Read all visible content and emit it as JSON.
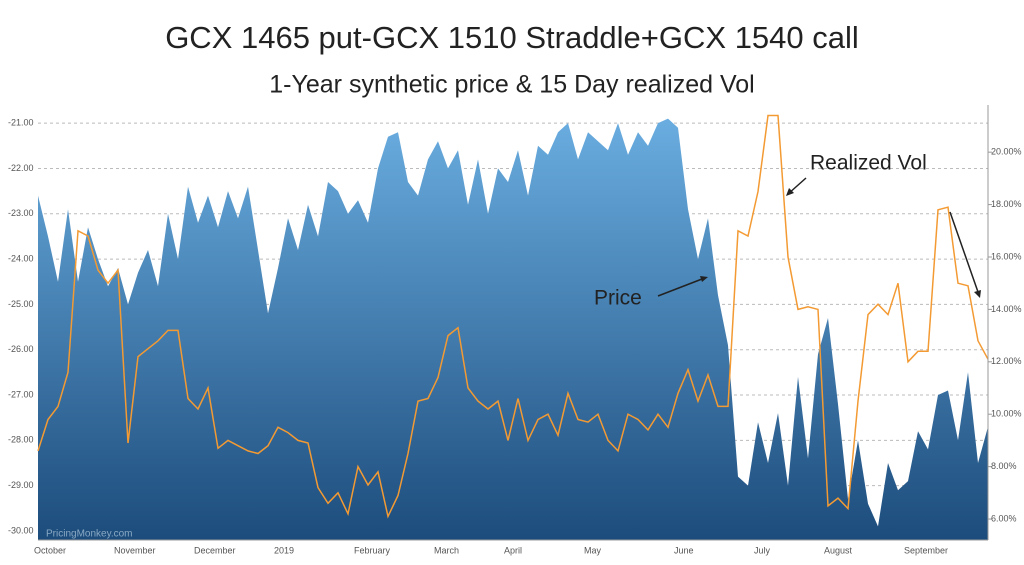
{
  "chart_data": {
    "type": "area-line",
    "title": "GCX 1465 put-GCX 1510 Straddle+GCX 1540 call",
    "subtitle": "1-Year synthetic price & 15 Day realized Vol",
    "watermark": "PricingMonkey.com",
    "categories": [
      null,
      "October",
      null,
      null,
      null,
      null,
      null,
      null,
      null,
      "November",
      null,
      null,
      null,
      null,
      null,
      null,
      null,
      "December",
      null,
      null,
      null,
      null,
      null,
      null,
      null,
      "2019",
      null,
      null,
      null,
      null,
      null,
      null,
      null,
      "February",
      null,
      null,
      null,
      null,
      null,
      null,
      null,
      "March",
      null,
      null,
      null,
      null,
      null,
      null,
      "April",
      null,
      null,
      null,
      null,
      null,
      null,
      null,
      "May",
      null,
      null,
      null,
      null,
      null,
      null,
      null,
      null,
      "June",
      null,
      null,
      null,
      null,
      null,
      null,
      null,
      "July",
      null,
      null,
      null,
      null,
      null,
      null,
      "August",
      null,
      null,
      null,
      null,
      null,
      null,
      null,
      "September",
      null,
      null,
      null,
      null,
      null,
      null,
      null
    ],
    "series": [
      {
        "name": "Price",
        "color": "#6aade0",
        "color2": "#1c4c7c",
        "values": [
          -22.6,
          -23.5,
          -24.5,
          -22.9,
          -24.5,
          -23.3,
          -24.0,
          -24.6,
          -24.2,
          -25.0,
          -24.3,
          -23.8,
          -24.6,
          -23.0,
          -24.0,
          -22.4,
          -23.2,
          -22.6,
          -23.3,
          -22.5,
          -23.1,
          -22.4,
          -23.8,
          -25.2,
          -24.2,
          -23.1,
          -23.8,
          -22.8,
          -23.5,
          -22.3,
          -22.5,
          -23.0,
          -22.7,
          -23.2,
          -22.0,
          -21.3,
          -21.2,
          -22.3,
          -22.6,
          -21.8,
          -21.4,
          -22.0,
          -21.6,
          -22.8,
          -21.8,
          -23.0,
          -22.0,
          -22.3,
          -21.6,
          -22.6,
          -21.5,
          -21.7,
          -21.2,
          -21.0,
          -21.8,
          -21.2,
          -21.4,
          -21.6,
          -21.0,
          -21.7,
          -21.2,
          -21.5,
          -21.0,
          -20.9,
          -21.1,
          -22.9,
          -24.0,
          -23.1,
          -24.8,
          -25.9,
          -28.8,
          -29.0,
          -27.6,
          -28.5,
          -27.4,
          -29.0,
          -26.6,
          -28.4,
          -26.1,
          -25.3,
          -27.2,
          -29.3,
          -28.0,
          -29.4,
          -29.9,
          -28.5,
          -29.1,
          -28.9,
          -27.8,
          -28.2,
          -27.0,
          -26.9,
          -28.0,
          -26.5,
          -28.5,
          -27.7
        ]
      },
      {
        "name": "Realized Vol",
        "color": "#f39a33",
        "axis": "y2",
        "values": [
          8.6,
          9.8,
          10.3,
          11.6,
          17.0,
          16.8,
          15.5,
          15.0,
          15.5,
          8.9,
          12.2,
          12.5,
          12.8,
          13.2,
          13.2,
          10.6,
          10.2,
          11.0,
          8.7,
          9.0,
          8.8,
          8.6,
          8.5,
          8.8,
          9.5,
          9.3,
          9.0,
          8.9,
          7.2,
          6.6,
          7.0,
          6.2,
          8.0,
          7.3,
          7.8,
          6.1,
          6.9,
          8.5,
          10.5,
          10.6,
          11.4,
          13.0,
          13.3,
          11.0,
          10.5,
          10.2,
          10.5,
          9.0,
          10.6,
          9.0,
          9.8,
          10.0,
          9.2,
          10.8,
          9.8,
          9.7,
          10.0,
          9.0,
          8.6,
          10.0,
          9.8,
          9.4,
          10.0,
          9.5,
          10.8,
          11.7,
          10.5,
          11.5,
          10.3,
          10.3,
          17.0,
          16.8,
          18.5,
          21.4,
          21.4,
          16.0,
          14.0,
          14.1,
          14.0,
          6.5,
          6.8,
          6.4,
          10.5,
          13.8,
          14.2,
          13.8,
          15.0,
          12.0,
          12.4,
          12.4,
          17.8,
          17.9,
          15.0,
          14.9,
          12.8,
          12.1
        ]
      }
    ],
    "ylim": [
      -30.2,
      -20.6
    ],
    "yticks": [
      {
        "value": -21,
        "label": "-21.00"
      },
      {
        "value": -22,
        "label": "-22.00"
      },
      {
        "value": -23,
        "label": "-23.00"
      },
      {
        "value": -24,
        "label": "-24.00"
      },
      {
        "value": -25,
        "label": "-25.00"
      },
      {
        "value": -26,
        "label": "-26.00"
      },
      {
        "value": -27,
        "label": "-27.00"
      },
      {
        "value": -28,
        "label": "-28.00"
      },
      {
        "value": -29,
        "label": "-29.00"
      },
      {
        "value": -30,
        "label": "-30.00"
      }
    ],
    "y2lim": [
      5.2,
      21.8
    ],
    "y2ticks": [
      {
        "value": 6,
        "label": "6.00%"
      },
      {
        "value": 8,
        "label": "8.00%"
      },
      {
        "value": 10,
        "label": "10.00%"
      },
      {
        "value": 12,
        "label": "12.00%"
      },
      {
        "value": 14,
        "label": "14.00%"
      },
      {
        "value": 16,
        "label": "16.00%"
      },
      {
        "value": 18,
        "label": "18.00%"
      },
      {
        "value": 20,
        "label": "20.00%"
      }
    ],
    "grid": true
  }
}
